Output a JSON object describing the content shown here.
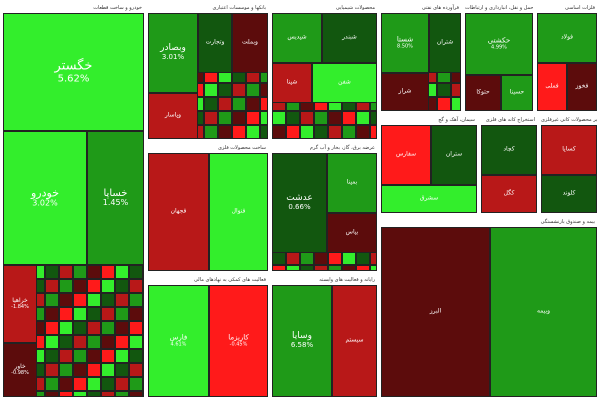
{
  "chart_data": {
    "type": "heatmap",
    "colors": {
      "strong_green": "#33ee2c",
      "mid_green": "#1f9a18",
      "dark_green": "#12570f",
      "strong_red": "#ff1a1a",
      "mid_red": "#b81818",
      "dark_red": "#5c0c0c"
    },
    "sectors": [
      {
        "title": "خودرو و ساخت قطعات",
        "tiles": [
          {
            "symbol": "خگستر",
            "change": "5.62%",
            "level": "strong_green"
          },
          {
            "symbol": "خودرو",
            "change": "3.02%",
            "level": "strong_green"
          },
          {
            "symbol": "خساپا",
            "change": "1.45%",
            "level": "mid_green"
          },
          {
            "symbol": "خراهیا",
            "change": "-1.84%",
            "level": "mid_red"
          },
          {
            "symbol": "خاور",
            "change": "-0.98%",
            "level": "dark_red"
          }
        ]
      },
      {
        "title": "بانکها و موسسات اعتباری",
        "tiles": [
          {
            "symbol": "وبصادر",
            "change": "3.01%",
            "level": "mid_green"
          },
          {
            "symbol": "وتجارت",
            "change": "",
            "level": "dark_green"
          },
          {
            "symbol": "وبملت",
            "change": "",
            "level": "dark_red"
          },
          {
            "symbol": "وپاسار",
            "change": "",
            "level": "mid_red"
          }
        ]
      },
      {
        "title": "محصولات شیمیایی",
        "tiles": [
          {
            "symbol": "شپدیس",
            "change": "",
            "level": "mid_green"
          },
          {
            "symbol": "شبندر",
            "change": "",
            "level": "dark_green"
          },
          {
            "symbol": "شپنا",
            "change": "",
            "level": "mid_red"
          },
          {
            "symbol": "شفن",
            "change": "",
            "level": "strong_green"
          }
        ]
      },
      {
        "title": "فرآورده های نفتی",
        "tiles": [
          {
            "symbol": "شستا",
            "change": "8.50%",
            "level": "mid_green"
          },
          {
            "symbol": "شتران",
            "change": "",
            "level": "dark_green"
          },
          {
            "symbol": "شراز",
            "change": "",
            "level": "dark_red"
          }
        ]
      },
      {
        "title": "حمل و نقل، انبارداری و ارتباطات",
        "tiles": [
          {
            "symbol": "حکشتی",
            "change": "4.99%",
            "level": "mid_green"
          },
          {
            "symbol": "حتوکا",
            "change": "",
            "level": "dark_red"
          },
          {
            "symbol": "حسینا",
            "change": "",
            "level": "mid_green"
          }
        ]
      },
      {
        "title": "فلزات اساسی",
        "tiles": [
          {
            "symbol": "فولاد",
            "change": "",
            "level": "mid_green"
          },
          {
            "symbol": "فملی",
            "change": "",
            "level": "strong_red"
          },
          {
            "symbol": "فخوز",
            "change": "",
            "level": "dark_red"
          }
        ]
      },
      {
        "title": "سیمان، آهک و گچ",
        "tiles": [
          {
            "symbol": "سفارس",
            "change": "",
            "level": "strong_red"
          },
          {
            "symbol": "ستران",
            "change": "",
            "level": "dark_green"
          },
          {
            "symbol": "سشرق",
            "change": "",
            "level": "strong_green"
          }
        ]
      },
      {
        "title": "عرضه برق، گاز، بخار و آب گرم",
        "tiles": [
          {
            "symbol": "عدشت",
            "change": "0.66%",
            "level": "dark_green"
          },
          {
            "symbol": "بمپنا",
            "change": "",
            "level": "mid_green"
          },
          {
            "symbol": "بپاس",
            "change": "",
            "level": "dark_red"
          }
        ]
      },
      {
        "title": "رایانه و فعالیت های وابسته",
        "tiles": [
          {
            "symbol": "وسایا",
            "change": "6.58%",
            "level": "mid_green"
          },
          {
            "symbol": "سیستم",
            "change": "",
            "level": "mid_red"
          }
        ]
      },
      {
        "title": "فعالیت های کمکی به نهادهای مالی",
        "tiles": [
          {
            "symbol": "فارس",
            "change": "4.61%",
            "level": "strong_green"
          },
          {
            "symbol": "کاریزما",
            "change": "-0.45%",
            "level": "strong_red"
          }
        ]
      },
      {
        "title": "استخراج کانه های فلزی",
        "tiles": [
          {
            "symbol": "کچاد",
            "change": "",
            "level": "dark_green"
          },
          {
            "symbol": "کگل",
            "change": "",
            "level": "mid_red"
          }
        ]
      },
      {
        "title": "سایر محصولات کانی غیرفلزی",
        "tiles": [
          {
            "symbol": "کساپا",
            "change": "",
            "level": "mid_red"
          },
          {
            "symbol": "کلوند",
            "change": "",
            "level": "dark_green"
          }
        ]
      },
      {
        "title": "ساخت محصولات فلزی",
        "tiles": [
          {
            "symbol": "فجهان",
            "change": "",
            "level": "mid_red"
          },
          {
            "symbol": "فنوال",
            "change": "",
            "level": "strong_green"
          }
        ]
      },
      {
        "title": "بیمه و صندوق بازنشستگی",
        "tiles": [
          {
            "symbol": "البرز",
            "change": "",
            "level": "dark_red"
          },
          {
            "symbol": "وبیمه",
            "change": "",
            "level": "mid_green"
          }
        ]
      }
    ]
  }
}
